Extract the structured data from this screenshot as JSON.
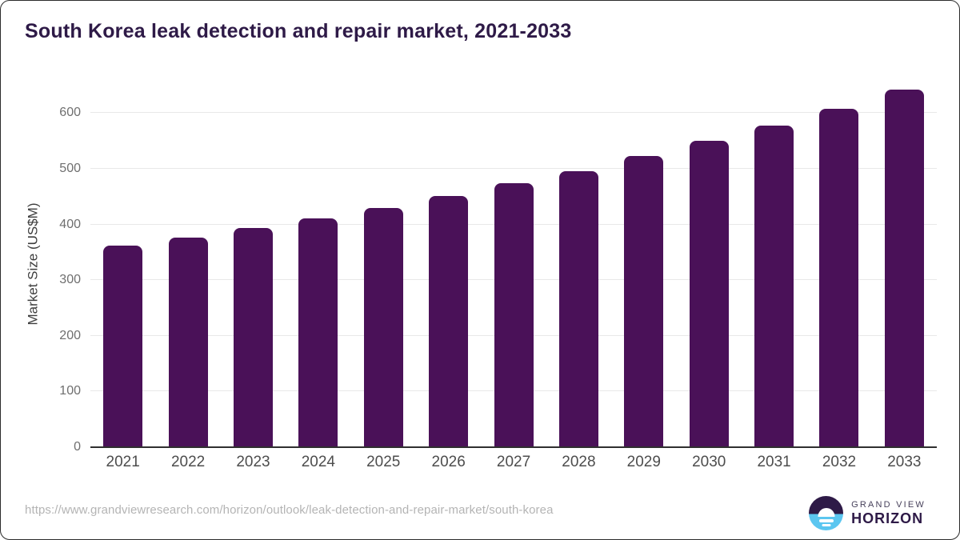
{
  "title": "South Korea leak detection and repair market, 2021-2033",
  "chart_data": {
    "type": "bar",
    "categories": [
      "2021",
      "2022",
      "2023",
      "2024",
      "2025",
      "2026",
      "2027",
      "2028",
      "2029",
      "2030",
      "2031",
      "2032",
      "2033"
    ],
    "values": [
      362,
      377,
      394,
      411,
      430,
      451,
      474,
      496,
      523,
      550,
      578,
      608,
      642
    ],
    "title": "South Korea leak detection and repair market, 2021-2033",
    "xlabel": "",
    "ylabel": "Market Size (US$M)",
    "yticks": [
      0,
      100,
      200,
      300,
      400,
      500,
      600
    ],
    "ylim": [
      0,
      658
    ],
    "grid": true,
    "legend": "none",
    "bar_color": "#4A1158",
    "gridline_color": "#e8e8e8",
    "axis_line_color": "#2f2f2f"
  },
  "footer": {
    "source_url": "https://www.grandviewresearch.com/horizon/outlook/leak-detection-and-repair-market/south-korea",
    "logo": {
      "brand_top": "GRAND VIEW",
      "brand_bottom": "HORIZON",
      "icon_top_color": "#2E1A47",
      "icon_bottom_color": "#5BC6F0"
    }
  }
}
